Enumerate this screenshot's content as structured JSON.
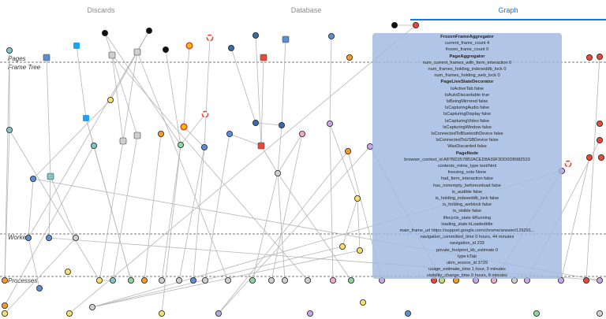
{
  "tabs": [
    {
      "label": "Discards",
      "active": false
    },
    {
      "label": "Database",
      "active": false
    },
    {
      "label": "Graph",
      "active": true
    }
  ],
  "lanes": {
    "pages": "Pages",
    "frame_tree": "Frame Tree",
    "workers": "Workers",
    "processes": "Processes"
  },
  "colors": {
    "accent": "#1a73e8",
    "tooltip_bg": "#a0b9e0"
  },
  "tooltip": {
    "sections": [
      {
        "title": "FrozenFrameAggregator",
        "lines": [
          "current_frame_count 4",
          "frozen_frame_count 0"
        ]
      },
      {
        "title": "PageAggregator",
        "lines": [
          "num_current_frames_with_form_interaction 0",
          "num_frames_holding_indexeddb_lock 0",
          "num_frames_holding_web_lock 0"
        ]
      },
      {
        "title": "PageLiveStateDecorator",
        "lines": [
          "IsActiveTab false",
          "IsAutoDiscardable true",
          "IsBeingMirrored false",
          "IsCapturingAudio false",
          "IsCapturingDisplay false",
          "IsCapturingVideo false",
          "IsCapturingWindow false",
          "IsConnectedToBluetoothDevice false",
          "IsConnectedToUSBDevice false",
          "WasDiscarded false"
        ]
      },
      {
        "title": "PageNode",
        "lines": [
          "browser_context_id A87BD2578B2ACED8A39F3DD0DB982533",
          "contents_mime_type text/html",
          "freezing_vote None",
          "had_form_interaction false",
          "has_nonempty_beforeunload false",
          "is_audible false",
          "is_holding_indexeddb_lock false",
          "is_holding_weblock false",
          "is_visible false",
          "lifecycle_state kRunning",
          "loading_state kLoadedIdle",
          "main_frame_url https://support.google.com/chrome/answer/129291...",
          "navigation_committed_time 0 hours, 44 minutes",
          "navigation_id 233",
          "private_footprint_kb_estimate 0",
          "type kTab",
          "ukm_source_id 3729",
          "usage_estimate_time 1 hour, 3 minutes",
          "visibility_change_time 0 hours, 8 minutes"
        ]
      }
    ]
  }
}
